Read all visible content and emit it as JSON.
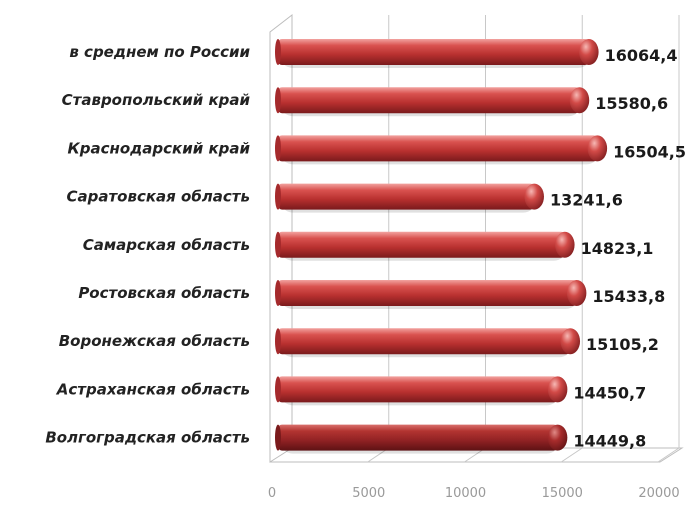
{
  "chart_data": {
    "type": "bar",
    "orientation": "horizontal",
    "categories": [
      "в среднем по России",
      "Ставропольский край",
      "Краснодарский край",
      "Саратовская область",
      "Самарская область",
      "Ростовская область",
      "Воронежская область",
      "Астраханская область",
      "Волгоградская область"
    ],
    "values": [
      16064.4,
      15580.6,
      16504.5,
      13241.6,
      14823.1,
      15433.8,
      15105.2,
      14450.7,
      14449.8
    ],
    "value_labels": [
      "16064,4",
      "15580,6",
      "16504,5",
      "13241,6",
      "14823,1",
      "15433,8",
      "15105,2",
      "14450,7",
      "14449,8"
    ],
    "xlim": [
      0,
      20000
    ],
    "xticks": [
      0,
      5000,
      10000,
      15000,
      20000
    ],
    "xtick_labels": [
      "0",
      "5000",
      "10000",
      "15000",
      "20000"
    ],
    "grid": true,
    "legend": "none",
    "title": "",
    "xlabel": "",
    "ylabel": "",
    "colors": {
      "bar": "#c0393b",
      "bar_highlight": "#f19a97",
      "bar_dark": "#7a1a1c",
      "last_bar": "#9e2326"
    }
  }
}
